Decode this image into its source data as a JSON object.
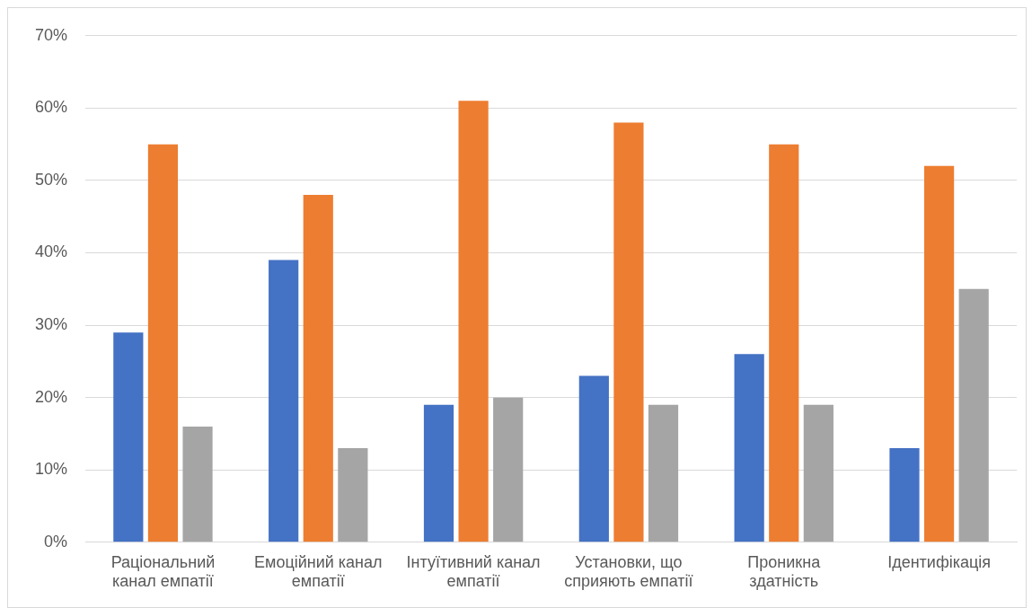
{
  "chart_data": {
    "type": "bar",
    "categories": [
      "Раціональний канал емпатії",
      "Емоційний канал емпатії",
      "Інтуїтивний канал емпатії",
      "Установки, що сприяють емпатії",
      "Проникна здатність",
      "Ідентифікація"
    ],
    "series": [
      {
        "color": "#4472c4",
        "values": [
          29,
          39,
          19,
          23,
          26,
          13
        ]
      },
      {
        "color": "#ed7d31",
        "values": [
          55,
          48,
          61,
          58,
          55,
          52
        ]
      },
      {
        "color": "#a5a5a5",
        "values": [
          16,
          13,
          20,
          19,
          19,
          35
        ]
      }
    ],
    "ylim": [
      0,
      70
    ],
    "yticks": [
      {
        "value": 0,
        "label": "0%"
      },
      {
        "value": 10,
        "label": "10%"
      },
      {
        "value": 20,
        "label": "20%"
      },
      {
        "value": 30,
        "label": "30%"
      },
      {
        "value": 40,
        "label": "40%"
      },
      {
        "value": 50,
        "label": "50%"
      },
      {
        "value": 60,
        "label": "60%"
      },
      {
        "value": 70,
        "label": "70%"
      }
    ],
    "grid": "y",
    "legend": false
  }
}
